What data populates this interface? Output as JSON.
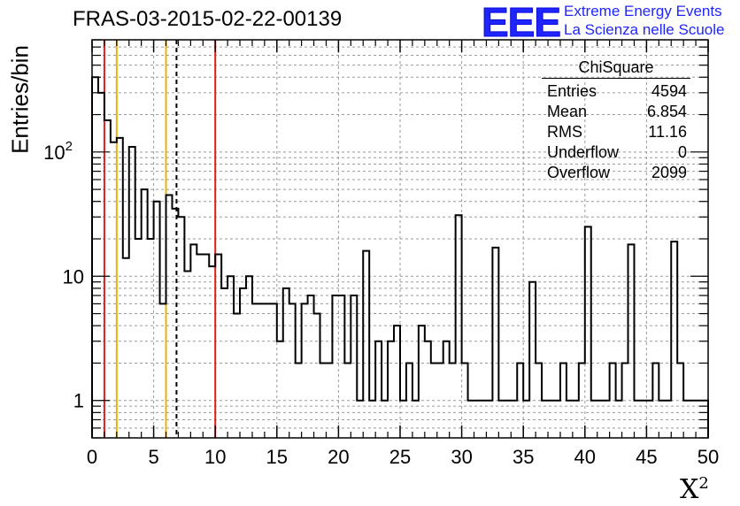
{
  "header": {
    "title": "FRAS-03-2015-02-22-00139",
    "logo_text": "EEE",
    "logo_line1": "Extreme Energy Events",
    "logo_line2": "La Scienza nelle Scuole",
    "logo_color": "#1f25ff"
  },
  "stats_box": {
    "title": "ChiSquare",
    "rows": [
      {
        "label": "Entries",
        "value": "4594"
      },
      {
        "label": "Mean",
        "value": "6.854"
      },
      {
        "label": "RMS",
        "value": "11.16"
      },
      {
        "label": "Underflow",
        "value": "0"
      },
      {
        "label": "Overflow",
        "value": "2099"
      }
    ]
  },
  "chart_data": {
    "type": "histogram",
    "ylabel": "Entries/bin",
    "xlabel": "X",
    "xlabel_sup": "2",
    "xlim": [
      0,
      50
    ],
    "ylim": [
      0.5,
      800
    ],
    "yscale": "log",
    "grid": true,
    "legend": "top-right",
    "bin_width": 0.5,
    "xticks": [
      0,
      5,
      10,
      15,
      20,
      25,
      30,
      35,
      40,
      45,
      50
    ],
    "yticks": [
      {
        "value": 1,
        "label": "1"
      },
      {
        "value": 10,
        "label": "10"
      },
      {
        "value": 100,
        "label": "10",
        "sup": "2"
      }
    ],
    "values": [
      400,
      300,
      180,
      120,
      130,
      14,
      110,
      20,
      50,
      20,
      40,
      6,
      45,
      35,
      30,
      11,
      18,
      15,
      15,
      12,
      15,
      8,
      10,
      5,
      8,
      10,
      6,
      6,
      6,
      6,
      3,
      8,
      6,
      2,
      6,
      7,
      5,
      2,
      2,
      7,
      7,
      2,
      7,
      1,
      16,
      1,
      3,
      1,
      3,
      4,
      1,
      2,
      1,
      4,
      3,
      2,
      2,
      3,
      2,
      31,
      2,
      1,
      1,
      1,
      1,
      17,
      1,
      1,
      1,
      2,
      1,
      9,
      2,
      1,
      1,
      1,
      2,
      1,
      1,
      2,
      25,
      1,
      1,
      1,
      2,
      1,
      2,
      18,
      1,
      1,
      1,
      2,
      1,
      1,
      19,
      2,
      1,
      1,
      1,
      1
    ],
    "vlines": [
      {
        "x": 1,
        "color": "#e41a1c",
        "style": "solid"
      },
      {
        "x": 2,
        "color": "#e8b20c",
        "style": "solid"
      },
      {
        "x": 6,
        "color": "#e8b20c",
        "style": "solid"
      },
      {
        "x": 6.854,
        "color": "#000000",
        "style": "dashed"
      },
      {
        "x": 10,
        "color": "#e41a1c",
        "style": "solid"
      }
    ]
  }
}
